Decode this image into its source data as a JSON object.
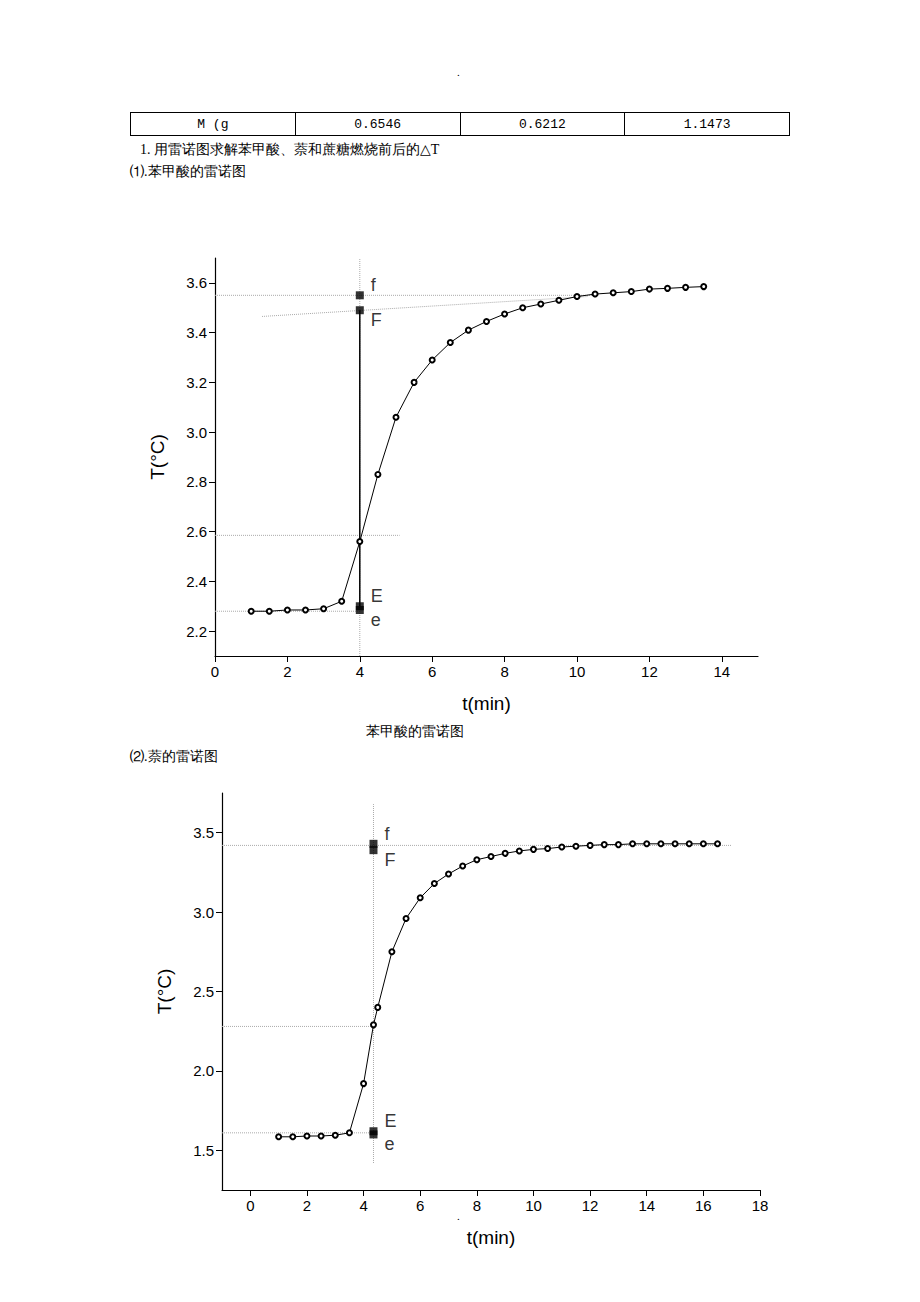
{
  "page": {
    "header_mark": ".",
    "footer_mark": ".",
    "table": {
      "rows": [
        [
          "M (g",
          "0.6546",
          "0.6212",
          "1.1473"
        ]
      ]
    },
    "heading": "1.  用雷诺图求解苯甲酸、萘和蔗糖燃烧前后的△T",
    "sections": [
      {
        "label": "⑴.苯甲酸的雷诺图",
        "caption": "苯甲酸的雷诺图"
      },
      {
        "label": "⑵.萘的雷诺图"
      }
    ]
  },
  "chart_data": [
    {
      "type": "line",
      "xlabel": "t(min)",
      "ylabel": "T(°C)",
      "color": "#000000",
      "marker": "emptyCircle",
      "x": [
        1,
        1.5,
        2,
        2.5,
        3,
        3.5,
        4,
        4.5,
        5,
        5.5,
        6,
        6.5,
        7,
        7.5,
        8,
        8.5,
        9,
        9.5,
        10,
        10.5,
        11,
        11.5,
        12,
        12.5,
        13,
        13.5
      ],
      "values": [
        2.28,
        2.28,
        2.285,
        2.285,
        2.29,
        2.32,
        2.56,
        2.83,
        3.06,
        3.2,
        3.29,
        3.36,
        3.41,
        3.445,
        3.475,
        3.5,
        3.515,
        3.53,
        3.545,
        3.555,
        3.56,
        3.565,
        3.575,
        3.578,
        3.582,
        3.585
      ],
      "xlim": [
        0,
        15
      ],
      "xticks": [
        0,
        2,
        4,
        6,
        8,
        10,
        12,
        14
      ],
      "ylim": [
        2.1,
        3.7
      ],
      "yticks": [
        2.2,
        2.4,
        2.6,
        2.8,
        {
          "value": 3,
          "label": "3.0"
        },
        3.2,
        3.4,
        3.6
      ],
      "grid": false,
      "annotations": {
        "points": [
          {
            "label": "f",
            "x": 4,
            "y": 3.55
          },
          {
            "label": "F",
            "x": 4,
            "y": 3.49
          },
          {
            "label": "E",
            "x": 4,
            "y": 2.3
          },
          {
            "label": "e",
            "x": 4,
            "y": 2.285
          }
        ],
        "lines": [
          {
            "x": [
              4,
              4
            ],
            "y": [
              2.1,
              3.7
            ],
            "line_style": "dotted"
          },
          {
            "x": [
              0,
              10.5
            ],
            "y": [
              3.55,
              3.55
            ],
            "line_style": "dotted"
          },
          {
            "x": [
              1.3,
              10.3
            ],
            "y": [
              3.465,
              3.545
            ],
            "line_style": "dotted"
          },
          {
            "x": [
              0,
              5.1
            ],
            "y": [
              2.585,
              2.585
            ],
            "line_style": "dotted"
          },
          {
            "x": [
              0,
              4
            ],
            "y": [
              2.28,
              2.28
            ],
            "line_style": "dotted"
          },
          {
            "x": [
              4,
              4
            ],
            "y": [
              2.3,
              3.49
            ],
            "line_style": "solid"
          }
        ]
      }
    },
    {
      "type": "line",
      "xlabel": "t(min)",
      "ylabel": "T(°C)",
      "color": "#000000",
      "marker": "emptyCircle",
      "x": [
        1,
        1.5,
        2,
        2.5,
        3,
        3.5,
        4,
        4.35,
        4.5,
        5,
        5.5,
        6,
        6.5,
        7,
        7.5,
        8,
        8.5,
        9,
        9.5,
        10,
        10.5,
        11,
        11.5,
        12,
        12.5,
        13,
        13.5,
        14,
        14.5,
        15,
        15.5,
        16,
        16.5
      ],
      "values": [
        1.585,
        1.585,
        1.59,
        1.59,
        1.595,
        1.61,
        1.92,
        2.29,
        2.4,
        2.75,
        2.96,
        3.09,
        3.18,
        3.24,
        3.29,
        3.33,
        3.35,
        3.37,
        3.385,
        3.395,
        3.4,
        3.41,
        3.415,
        3.42,
        3.425,
        3.425,
        3.43,
        3.43,
        3.43,
        3.43,
        3.43,
        3.43,
        3.43
      ],
      "xlim": [
        -1,
        18
      ],
      "xticks": [
        0,
        2,
        4,
        6,
        8,
        10,
        12,
        14,
        16,
        18
      ],
      "ylim": [
        1.25,
        3.75
      ],
      "yticks": [
        1.5,
        {
          "value": 2,
          "label": "2.0"
        },
        2.5,
        {
          "value": 3,
          "label": "3.0"
        },
        3.5
      ],
      "grid": false,
      "annotations": {
        "points": [
          {
            "label": "f",
            "x": 4.35,
            "y": 3.43
          },
          {
            "label": "F",
            "x": 4.35,
            "y": 3.39
          },
          {
            "label": "E",
            "x": 4.35,
            "y": 1.62
          },
          {
            "label": "e",
            "x": 4.35,
            "y": 1.6
          }
        ],
        "lines": [
          {
            "x": [
              4.35,
              4.35
            ],
            "y": [
              1.42,
              3.68
            ],
            "line_style": "dotted"
          },
          {
            "x": [
              -1,
              17
            ],
            "y": [
              3.42,
              3.42
            ],
            "line_style": "dotted"
          },
          {
            "x": [
              -1,
              4.35
            ],
            "y": [
              2.28,
              2.28
            ],
            "line_style": "dotted"
          },
          {
            "x": [
              -1,
              4.35
            ],
            "y": [
              1.61,
              1.61
            ],
            "line_style": "dotted"
          }
        ]
      }
    }
  ]
}
